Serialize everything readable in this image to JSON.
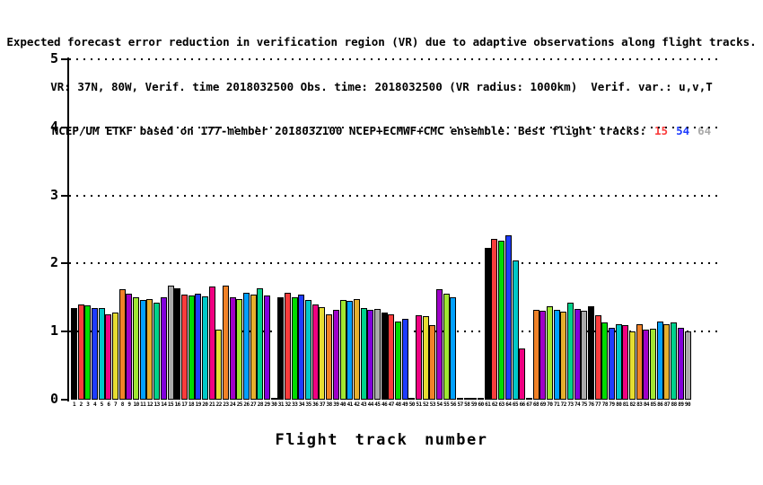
{
  "title": {
    "line1": "Expected forecast error reduction in verification region (VR) due to adaptive observations along flight tracks.",
    "line2": "VR: 37N, 80W, Verif. time 2018032500 Obs. time: 2018032500 (VR radius: 1000km)  Verif. var.: u,v,T",
    "line3_prefix": "NCEP/UM ETKF based on 177-member 2018032100 NCEP+ECMWF+CMC ensemble. Best flight tracks:",
    "best_tracks": [
      {
        "label": "15",
        "color": "#FA3C3C"
      },
      {
        "label": "54",
        "color": "#1E3CFF"
      },
      {
        "label": "64",
        "color": "#AAAAAA"
      }
    ]
  },
  "chart_data": {
    "type": "bar",
    "title": "Expected forecast error reduction in verification region (VR) due to adaptive observations along flight tracks.",
    "xlabel": "Flight track number",
    "ylabel": "",
    "ylim": [
      0,
      5
    ],
    "yticks": [
      0,
      1,
      2,
      3,
      4,
      5
    ],
    "grid": "dotted horizontal lines at y=1..5",
    "legend_position": "none",
    "x_range": [
      1,
      90
    ],
    "palette_cycle_15": [
      "#000000",
      "#FA3C3C",
      "#00DC00",
      "#1E3CFF",
      "#00C8C8",
      "#F00082",
      "#E6DC32",
      "#F08228",
      "#A000C8",
      "#A0E632",
      "#00A0FF",
      "#E6AF2D",
      "#00D28C",
      "#8200DC",
      "#AAAAAA"
    ],
    "color_rule": "bar color = palette_cycle_15[(track-1) mod 15], black outline on every bar",
    "categories": [
      1,
      2,
      3,
      4,
      5,
      6,
      7,
      8,
      9,
      10,
      11,
      12,
      13,
      14,
      15,
      16,
      17,
      18,
      19,
      20,
      21,
      22,
      23,
      24,
      25,
      26,
      27,
      28,
      29,
      30,
      31,
      32,
      33,
      34,
      35,
      36,
      37,
      38,
      39,
      40,
      41,
      42,
      43,
      44,
      45,
      46,
      47,
      48,
      49,
      50,
      51,
      52,
      53,
      54,
      55,
      56,
      57,
      58,
      59,
      60,
      61,
      62,
      63,
      64,
      65,
      66,
      67,
      68,
      69,
      70,
      71,
      72,
      73,
      74,
      75,
      76,
      77,
      78,
      79,
      80,
      81,
      82,
      83,
      84,
      85,
      86,
      87,
      88,
      89,
      90
    ],
    "values": [
      1.35,
      1.4,
      1.38,
      1.34,
      1.34,
      1.25,
      1.28,
      1.62,
      1.56,
      1.5,
      1.47,
      1.48,
      1.42,
      1.5,
      1.67,
      1.64,
      1.55,
      1.53,
      1.56,
      1.52,
      1.66,
      1.03,
      1.67,
      1.5,
      1.48,
      1.57,
      1.54,
      1.63,
      1.53,
      0.02,
      1.5,
      1.57,
      1.5,
      1.54,
      1.47,
      1.4,
      1.36,
      1.25,
      1.32,
      1.47,
      1.45,
      1.48,
      1.34,
      1.32,
      1.33,
      1.28,
      1.25,
      1.15,
      1.19,
      0.02,
      1.24,
      1.23,
      1.1,
      1.62,
      1.56,
      1.51,
      0.02,
      0.02,
      0.02,
      0.02,
      2.23,
      2.36,
      2.33,
      2.41,
      2.05,
      0.75,
      0.02,
      1.32,
      1.3,
      1.37,
      1.32,
      1.29,
      1.42,
      1.33,
      1.3,
      1.37,
      1.24,
      1.13,
      1.06,
      1.11,
      1.1,
      1.0,
      1.11,
      1.03,
      1.04,
      1.15,
      1.11,
      1.13,
      1.06,
      1.0
    ]
  }
}
